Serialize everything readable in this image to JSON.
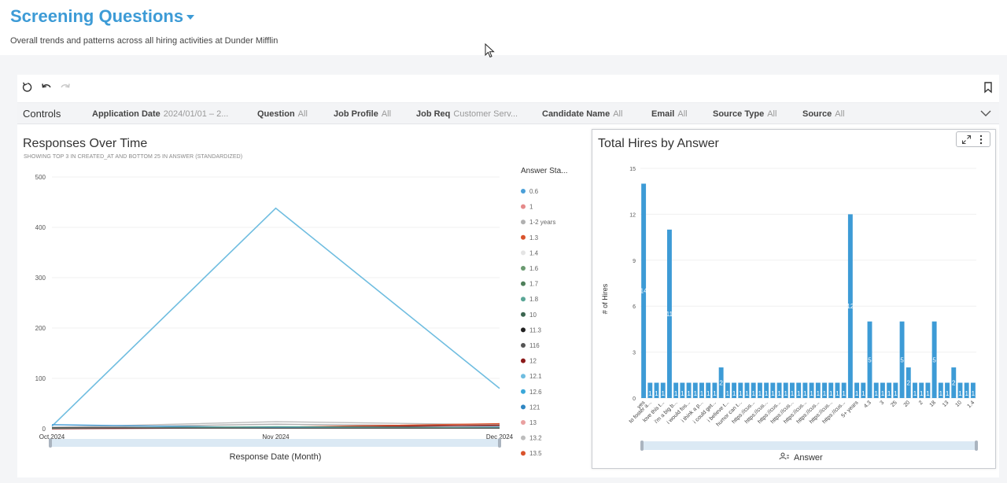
{
  "header": {
    "title": "Screening Questions",
    "subtitle": "Overall trends and patterns across all hiring activities at Dunder Mifflin"
  },
  "toolbar": {
    "icons": [
      "reset-icon",
      "undo-icon",
      "redo-icon",
      "bookmark-icon"
    ]
  },
  "controls": {
    "label": "Controls",
    "filters": [
      {
        "label": "Application Date",
        "value": "2024/01/01 – 2..."
      },
      {
        "label": "Question",
        "value": "All"
      },
      {
        "label": "Job Profile",
        "value": "All"
      },
      {
        "label": "Job Req",
        "value": "Customer Serv..."
      },
      {
        "label": "Candidate Name",
        "value": "All"
      },
      {
        "label": "Email",
        "value": "All"
      },
      {
        "label": "Source Type",
        "value": "All"
      },
      {
        "label": "Source",
        "value": "All"
      }
    ]
  },
  "left_panel": {
    "title": "Responses Over Time",
    "subtitle": "SHOWING TOP 3 IN CREATED_AT AND BOTTOM 25 IN ANSWER (STANDARDIZED)",
    "legend_title": "Answer Sta...",
    "legend_items": [
      {
        "label": "0.6",
        "color": "#4a9fd8"
      },
      {
        "label": "1",
        "color": "#e58a8a"
      },
      {
        "label": "1-2 years",
        "color": "#b0b0b0"
      },
      {
        "label": "1.3",
        "color": "#d9532c"
      },
      {
        "label": "1.4",
        "color": "#e4e4e4"
      },
      {
        "label": "1.6",
        "color": "#6a9a70"
      },
      {
        "label": "1.7",
        "color": "#4f7f5a"
      },
      {
        "label": "1.8",
        "color": "#5aa696"
      },
      {
        "label": "10",
        "color": "#3b6550"
      },
      {
        "label": "11.3",
        "color": "#222222"
      },
      {
        "label": "116",
        "color": "#555555"
      },
      {
        "label": "12",
        "color": "#8b1a1a"
      },
      {
        "label": "12.1",
        "color": "#6fbde0"
      },
      {
        "label": "12.6",
        "color": "#3aa7d9"
      },
      {
        "label": "121",
        "color": "#2f86c2"
      },
      {
        "label": "13",
        "color": "#e9a0a0"
      },
      {
        "label": "13.2",
        "color": "#bdbdbd"
      },
      {
        "label": "13.5",
        "color": "#d9532c"
      }
    ]
  },
  "right_panel": {
    "title": "Total Hires by Answer",
    "axis_title": "Answer"
  },
  "chart_data": [
    {
      "type": "line",
      "title": "Responses Over Time",
      "xlabel": "Response Date (Month)",
      "ylabel": "",
      "x": [
        "Oct 2024",
        "Nov 2024",
        "Dec 2024"
      ],
      "ylim": [
        0,
        500
      ],
      "yticks": [
        "0",
        "100",
        "200",
        "300",
        "400",
        "500"
      ],
      "series": [
        {
          "name": "12.1",
          "color": "#6fbde0",
          "values": [
            5,
            438,
            80
          ]
        },
        {
          "name": "13.2",
          "color": "#bdbdbd",
          "values": [
            3,
            14,
            8
          ]
        },
        {
          "name": "1-2 years",
          "color": "#b0b0b0",
          "values": [
            2,
            9,
            5
          ]
        },
        {
          "name": "13.5",
          "color": "#d9532c",
          "values": [
            1,
            3,
            10
          ]
        },
        {
          "name": "12",
          "color": "#8b1a1a",
          "values": [
            0,
            2,
            7
          ]
        },
        {
          "name": "0.6",
          "color": "#4a9fd8",
          "values": [
            8,
            2,
            3
          ]
        },
        {
          "name": "1.8",
          "color": "#5aa696",
          "values": [
            1,
            4,
            2
          ]
        },
        {
          "name": "116",
          "color": "#555555",
          "values": [
            2,
            1,
            1
          ]
        }
      ]
    },
    {
      "type": "bar",
      "title": "Total Hires by Answer",
      "xlabel": "Answer",
      "ylabel": "# of Hires",
      "ylim": [
        0,
        15
      ],
      "yticks": [
        "0",
        "3",
        "6",
        "9",
        "12",
        "15"
      ],
      "categories": [
        "yes",
        "to foster a...",
        "",
        "love this t...",
        "",
        "i'm a big b...",
        "",
        "i would fos...",
        "",
        "i think a p...",
        "",
        "i could get...",
        "",
        "i believe t...",
        "",
        "humor can t...",
        "",
        "https://cus...",
        "",
        "https://cus...",
        "",
        "https://cus...",
        "",
        "https://cus...",
        "",
        "https://cus...",
        "",
        "https://cus...",
        "",
        "https://cus...",
        "",
        "https://cus...",
        "",
        "5+ years",
        "",
        "4.3",
        "",
        "3",
        "",
        "25",
        "",
        "20",
        "",
        "2",
        "",
        "18",
        "",
        "13",
        "",
        "10",
        "",
        "1.4"
      ],
      "values": [
        14,
        1,
        1,
        1,
        11,
        1,
        1,
        1,
        1,
        1,
        1,
        1,
        2,
        1,
        1,
        1,
        1,
        1,
        1,
        1,
        1,
        1,
        1,
        1,
        1,
        1,
        1,
        1,
        1,
        1,
        1,
        1,
        12,
        1,
        1,
        5,
        1,
        1,
        1,
        1,
        5,
        2,
        1,
        1,
        1,
        5,
        1,
        1,
        2,
        1,
        1,
        1
      ]
    }
  ]
}
